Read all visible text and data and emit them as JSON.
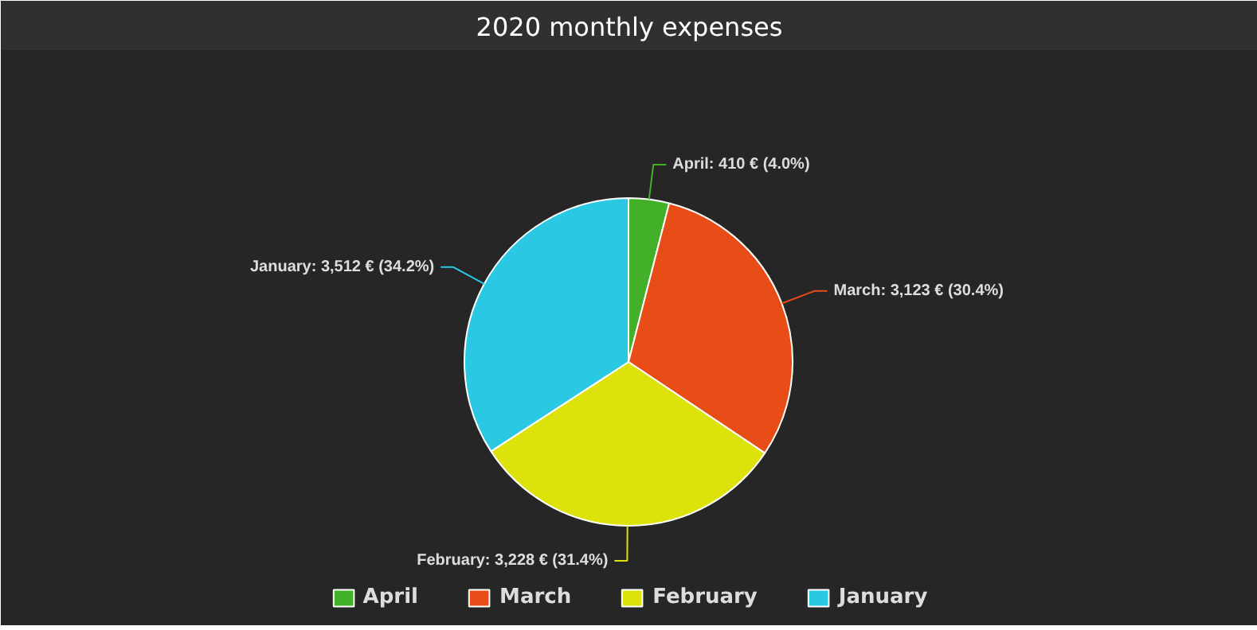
{
  "chart_data": {
    "type": "pie",
    "title": "2020 monthly expenses",
    "categories": [
      "April",
      "March",
      "February",
      "January"
    ],
    "values": [
      410,
      3123,
      3228,
      3512
    ],
    "colors": [
      "#43b02a",
      "#e84c17",
      "#dce20a",
      "#2ac8e2"
    ],
    "value_labels": [
      "April: 410 € (4.0%)",
      "March: 3,123 € (30.4%)",
      "February: 3,228 € (31.4%)",
      "January: 3,512 € (34.2%)"
    ],
    "legend": "bottom"
  }
}
